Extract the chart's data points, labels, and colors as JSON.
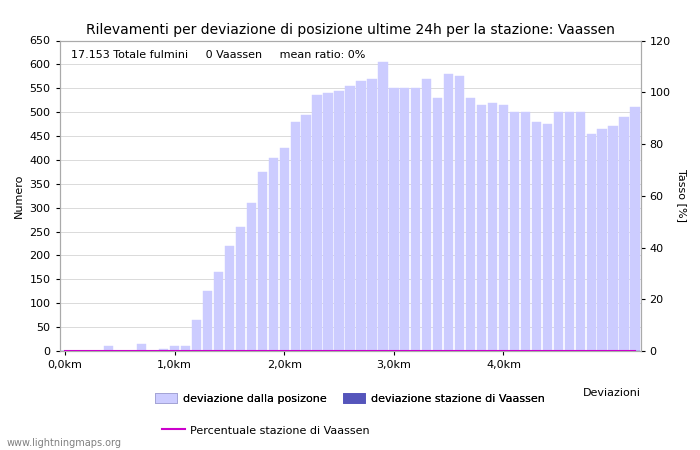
{
  "title": "Rilevamenti per deviazione di posizione ultime 24h per la stazione: Vaassen",
  "xlabel": "Deviazioni",
  "ylabel_left": "Numero",
  "ylabel_right": "Tasso [%]",
  "annotation": "17.153 Totale fulmini     0 Vaassen     mean ratio: 0%",
  "watermark": "www.lightningmaps.org",
  "bar_values": [
    0,
    0,
    0,
    0,
    10,
    0,
    0,
    15,
    0,
    5,
    10,
    10,
    65,
    125,
    165,
    220,
    260,
    310,
    375,
    405,
    425,
    480,
    495,
    535,
    540,
    545,
    555,
    565,
    570,
    605,
    550,
    550,
    550,
    570,
    530,
    580,
    575,
    530,
    515,
    520,
    515,
    500,
    500,
    480,
    475,
    500,
    500,
    500,
    455,
    465,
    470,
    490,
    510
  ],
  "station_bar_values": [
    0,
    0,
    0,
    0,
    0,
    0,
    0,
    0,
    0,
    0,
    0,
    0,
    0,
    0,
    0,
    0,
    0,
    0,
    0,
    0,
    0,
    0,
    0,
    0,
    0,
    0,
    0,
    0,
    0,
    0,
    0,
    0,
    0,
    0,
    0,
    0,
    0,
    0,
    0,
    0,
    0,
    0,
    0,
    0,
    0,
    0,
    0,
    0,
    0,
    0,
    0,
    0,
    0
  ],
  "percentage_values": [
    0,
    0,
    0,
    0,
    0,
    0,
    0,
    0,
    0,
    0,
    0,
    0,
    0,
    0,
    0,
    0,
    0,
    0,
    0,
    0,
    0,
    0,
    0,
    0,
    0,
    0,
    0,
    0,
    0,
    0,
    0,
    0,
    0,
    0,
    0,
    0,
    0,
    0,
    0,
    0,
    0,
    0,
    0,
    0,
    0,
    0,
    0,
    0,
    0,
    0,
    0,
    0,
    0
  ],
  "xtick_positions": [
    0,
    10,
    20,
    30,
    40
  ],
  "xtick_labels": [
    "0,0km",
    "1,0km",
    "2,0km",
    "3,0km",
    "4,0km"
  ],
  "ylim_left": [
    0,
    650
  ],
  "ylim_right": [
    0,
    120
  ],
  "yticks_left": [
    0,
    50,
    100,
    150,
    200,
    250,
    300,
    350,
    400,
    450,
    500,
    550,
    600,
    650
  ],
  "yticks_right": [
    0,
    20,
    40,
    60,
    80,
    100,
    120
  ],
  "bar_color_light": "#ccccff",
  "bar_color_dark": "#5555bb",
  "line_color": "#cc00cc",
  "bg_color": "#ffffff",
  "grid_color": "#cccccc",
  "title_fontsize": 10,
  "label_fontsize": 8,
  "tick_fontsize": 8,
  "annotation_fontsize": 8
}
